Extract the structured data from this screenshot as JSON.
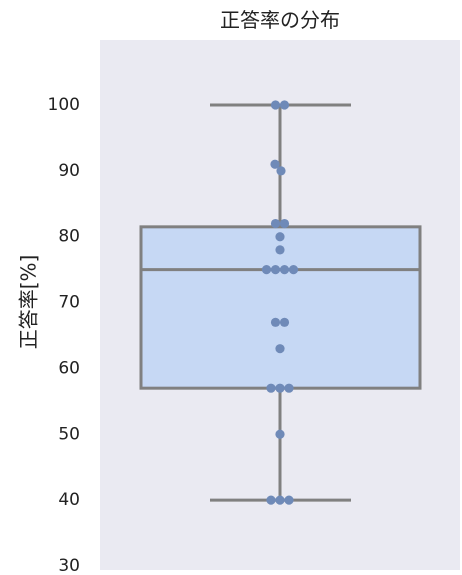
{
  "chart_data": {
    "type": "box",
    "title": "正答率の分布",
    "xlabel": "",
    "ylabel": "正答率[%]",
    "ylim": [
      30,
      110
    ],
    "yticks": [
      100,
      90,
      80,
      70,
      60,
      50,
      40,
      30
    ],
    "grid": false,
    "box": {
      "whisker_low": 40,
      "q1": 57,
      "median": 75,
      "q3": 81.5,
      "whisker_high": 100
    },
    "points": [
      100,
      100,
      91,
      90,
      82,
      82,
      80,
      78,
      75,
      75,
      75,
      75,
      67,
      67,
      63,
      57,
      57,
      57,
      50,
      40,
      40,
      40
    ],
    "colors": {
      "background": "#eaeaf2",
      "box_fill": "#c6d8f4",
      "box_edge": "#808080",
      "points": "#6f8ab8"
    }
  }
}
